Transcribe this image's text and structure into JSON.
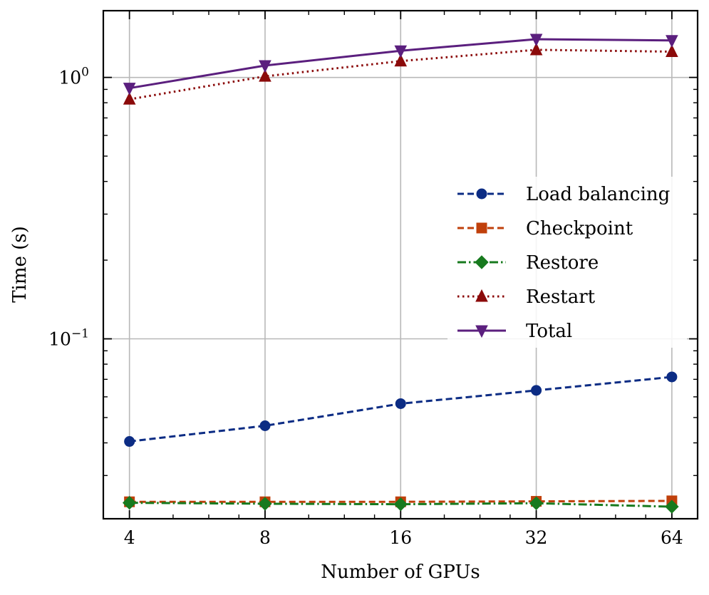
{
  "chart_data": {
    "type": "line",
    "title": "",
    "xlabel": "Number of GPUs",
    "ylabel": "Time (s)",
    "xscale": "log2",
    "yscale": "log10",
    "x": [
      4,
      8,
      16,
      32,
      64
    ],
    "xlim": [
      3.5,
      73
    ],
    "ylim": [
      0.0205,
      1.8
    ],
    "grid": true,
    "legend_position": "center-right",
    "x_tick_labels": [
      "4",
      "8",
      "16",
      "32",
      "64"
    ],
    "y_tick_labels": [
      {
        "value": 1.0,
        "base": "10",
        "exp": "0"
      },
      {
        "value": 0.1,
        "base": "10",
        "exp": "−1"
      }
    ],
    "series": [
      {
        "name": "Load balancing",
        "color": "#0C2C84",
        "line_style": "dashed",
        "marker": "circle",
        "values": [
          0.0405,
          0.0465,
          0.0565,
          0.0635,
          0.0715
        ]
      },
      {
        "name": "Checkpoint",
        "color": "#C0400B",
        "line_style": "dashed",
        "marker": "square",
        "values": [
          0.0238,
          0.0238,
          0.0238,
          0.0239,
          0.024
        ]
      },
      {
        "name": "Restore",
        "color": "#177A1E",
        "line_style": "dashdot",
        "marker": "diamond",
        "values": [
          0.0236,
          0.0234,
          0.0233,
          0.0235,
          0.0228
        ]
      },
      {
        "name": "Restart",
        "color": "#8B0A0A",
        "line_style": "dotted",
        "marker": "triangle-up",
        "values": [
          0.825,
          1.01,
          1.155,
          1.275,
          1.255
        ]
      },
      {
        "name": "Total",
        "color": "#5B1F7E",
        "line_style": "solid",
        "marker": "triangle-down",
        "values": [
          0.91,
          1.11,
          1.265,
          1.4,
          1.385
        ]
      }
    ]
  }
}
